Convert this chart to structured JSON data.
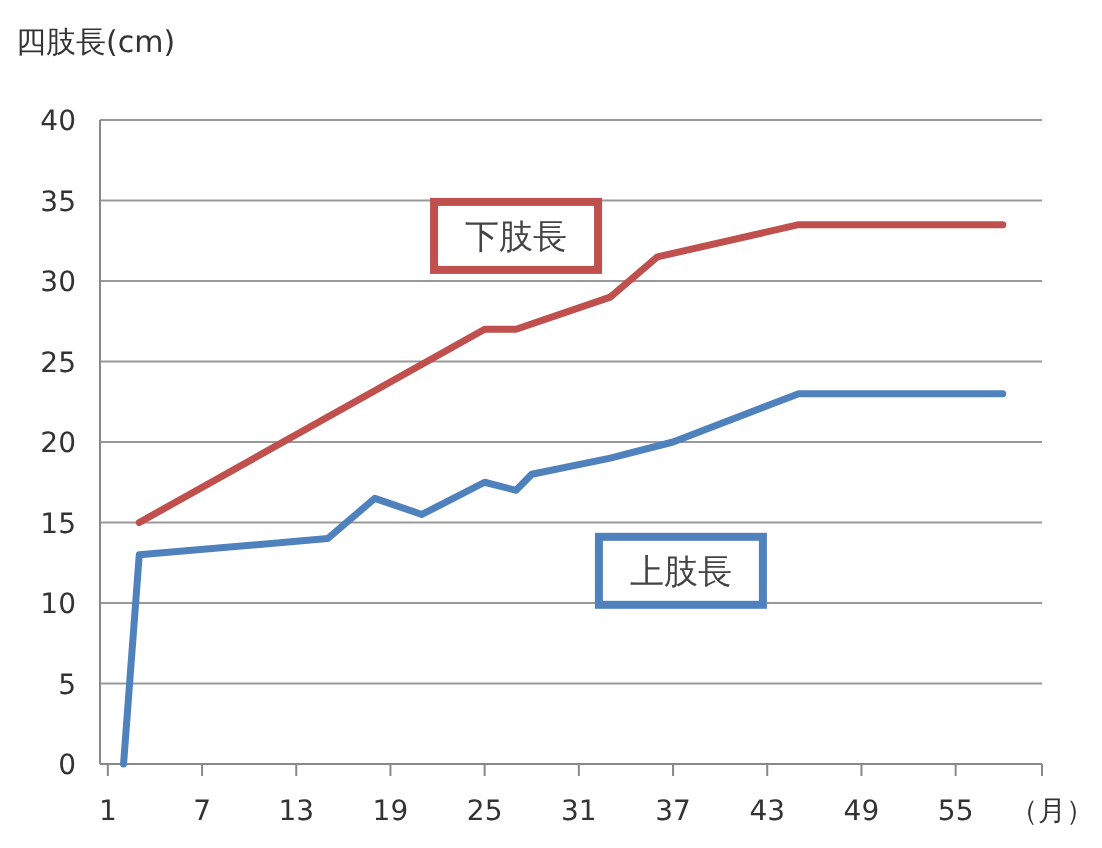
{
  "chart_data": {
    "type": "line",
    "ylabel": "四肢長(cm)",
    "xlabel": "（月）",
    "xlim": [
      0.5,
      60.5
    ],
    "xticks": [
      1,
      7,
      13,
      19,
      25,
      31,
      37,
      43,
      49,
      55
    ],
    "ylim": [
      0,
      40
    ],
    "yticks": [
      0,
      5,
      10,
      15,
      20,
      25,
      30,
      35,
      40
    ],
    "grid": "y",
    "marker": "none",
    "line_style": "solid",
    "series": [
      {
        "name": "下肢長",
        "color": "#c0504d",
        "x": [
          3,
          25,
          27,
          33,
          36,
          45,
          58
        ],
        "values": [
          15,
          27,
          27,
          29,
          31.5,
          33.5,
          33.5
        ]
      },
      {
        "name": "上肢長",
        "color": "#4f81bd",
        "x": [
          2,
          3,
          15,
          18,
          21,
          25,
          27,
          28,
          33,
          37,
          45,
          58
        ],
        "values": [
          0,
          13,
          14,
          16.5,
          15.5,
          17.5,
          17,
          18,
          19,
          20,
          23,
          23
        ]
      }
    ]
  }
}
